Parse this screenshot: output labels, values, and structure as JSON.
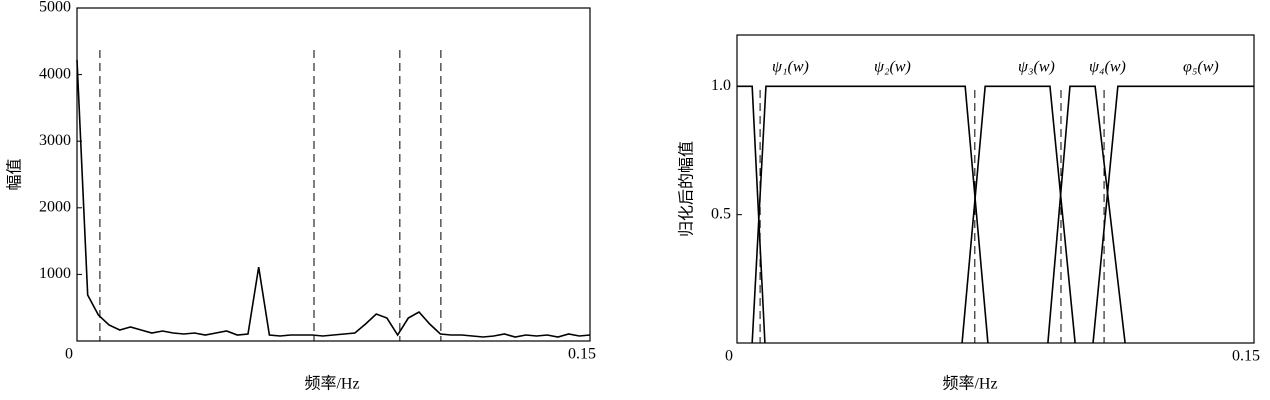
{
  "chart_data": [
    {
      "type": "line",
      "xlabel": "频率/Hz",
      "ylabel": "幅值",
      "color": "#000000",
      "x": [
        0,
        0.003125,
        0.00625,
        0.009375,
        0.0125,
        0.015625,
        0.01875,
        0.021875,
        0.025,
        0.028125,
        0.03125,
        0.034375,
        0.0375,
        0.040625,
        0.04375,
        0.046875,
        0.05,
        0.053125,
        0.05625,
        0.059375,
        0.0625,
        0.065625,
        0.06875,
        0.071875,
        0.075,
        0.078125,
        0.08125,
        0.084375,
        0.0875,
        0.090625,
        0.09375,
        0.096875,
        0.1,
        0.103125,
        0.10625,
        0.109375,
        0.1125,
        0.115625,
        0.11875,
        0.121875,
        0.125,
        0.128125,
        0.13125,
        0.134375,
        0.1375,
        0.140625,
        0.14375,
        0.146875,
        0.15
      ],
      "values": [
        4220,
        690,
        390,
        240,
        165,
        210,
        165,
        120,
        150,
        120,
        105,
        120,
        90,
        120,
        150,
        90,
        105,
        1110,
        90,
        75,
        90,
        90,
        90,
        75,
        90,
        105,
        120,
        255,
        405,
        345,
        90,
        345,
        435,
        255,
        105,
        90,
        90,
        75,
        60,
        75,
        105,
        60,
        90,
        75,
        90,
        60,
        105,
        75,
        90
      ],
      "dividers": [
        0.0067,
        0.0693,
        0.0944,
        0.1064
      ],
      "xlim": [
        0,
        0.15
      ],
      "xticks": [
        0,
        0.15
      ],
      "ylim": [
        0,
        5000
      ],
      "yticks": [
        1000,
        2000,
        3000,
        4000,
        5000
      ]
    },
    {
      "type": "line",
      "xlabel": "频率/Hz",
      "ylabel": "归化后的幅值",
      "series": [
        {
          "name": "ψ₁(w)",
          "color": "#000000",
          "x": [
            0,
            0.0044,
            0.0081
          ],
          "values": [
            1,
            1,
            0
          ]
        },
        {
          "name": "ψ₂(w)",
          "color": "#000000",
          "x": [
            0.0044,
            0.0084,
            0.0662,
            0.0728
          ],
          "values": [
            0,
            1,
            1,
            0
          ]
        },
        {
          "name": "ψ₃(w)",
          "color": "#000000",
          "x": [
            0.0653,
            0.072,
            0.0908,
            0.0981
          ],
          "values": [
            0,
            1,
            1,
            0
          ]
        },
        {
          "name": "ψ₄(w)",
          "color": "#000000",
          "x": [
            0.0902,
            0.0966,
            0.1039,
            0.1126
          ],
          "values": [
            0,
            1,
            1,
            0
          ]
        },
        {
          "name": "φ₅(w)",
          "color": "#000000",
          "x": [
            0.1033,
            0.1105,
            0.15
          ],
          "values": [
            0,
            1,
            1
          ]
        }
      ],
      "dividers": [
        0.0067,
        0.069,
        0.094,
        0.1065
      ],
      "xlim": [
        0,
        0.15
      ],
      "xticks": [
        0,
        0.15
      ],
      "ylim": [
        0,
        1.2
      ],
      "yticks": [
        0.5,
        {
          "value": 1,
          "label": "1.0"
        }
      ]
    }
  ]
}
